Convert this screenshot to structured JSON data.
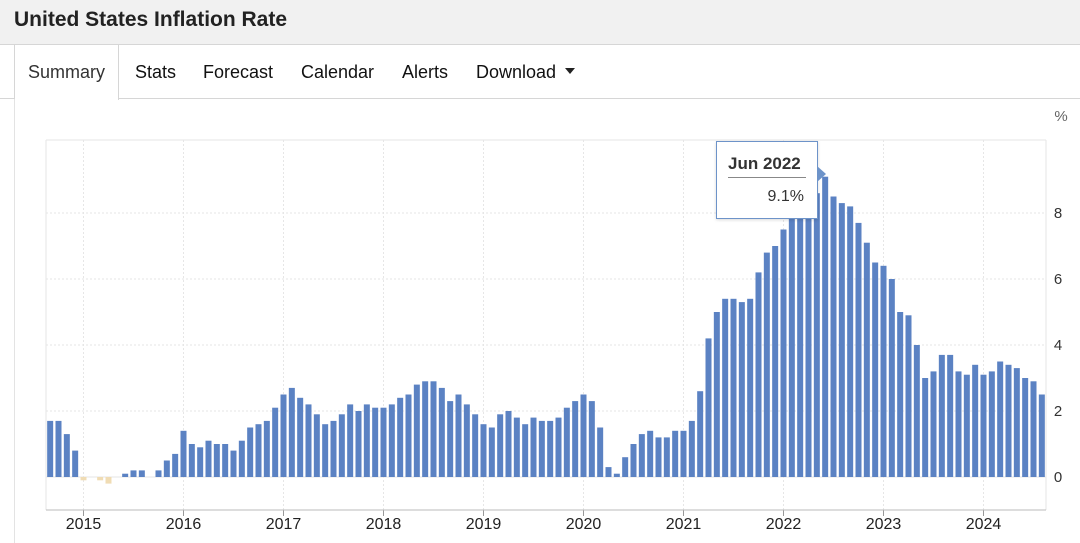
{
  "page": {
    "title": "United States Inflation Rate"
  },
  "tabs": [
    {
      "label": "Summary",
      "active": true
    },
    {
      "label": "Stats",
      "active": false
    },
    {
      "label": "Forecast",
      "active": false
    },
    {
      "label": "Calendar",
      "active": false
    },
    {
      "label": "Alerts",
      "active": false
    },
    {
      "label": "Download",
      "active": false,
      "has_dropdown": true
    }
  ],
  "tooltip": {
    "date": "Jun 2022",
    "value": "9.1%"
  },
  "colors": {
    "positive_bar": "#5b82c3",
    "negative_bar": "#f0dcb4",
    "grid": "#e6e6e6",
    "tooltip_border": "#6d93c9"
  },
  "chart_data": {
    "type": "bar",
    "unit": "%",
    "ylim": [
      -1,
      10
    ],
    "yticks": [
      0,
      2,
      4,
      6,
      8
    ],
    "x_tick_labels": [
      "2015",
      "2016",
      "2017",
      "2018",
      "2019",
      "2020",
      "2021",
      "2022",
      "2023",
      "2024"
    ],
    "grid": true,
    "x_start": "2014-09",
    "x_end": "2024-08",
    "categories": [
      "Sep 2014",
      "Oct 2014",
      "Nov 2014",
      "Dec 2014",
      "Jan 2015",
      "Feb 2015",
      "Mar 2015",
      "Apr 2015",
      "May 2015",
      "Jun 2015",
      "Jul 2015",
      "Aug 2015",
      "Sep 2015",
      "Oct 2015",
      "Nov 2015",
      "Dec 2015",
      "Jan 2016",
      "Feb 2016",
      "Mar 2016",
      "Apr 2016",
      "May 2016",
      "Jun 2016",
      "Jul 2016",
      "Aug 2016",
      "Sep 2016",
      "Oct 2016",
      "Nov 2016",
      "Dec 2016",
      "Jan 2017",
      "Feb 2017",
      "Mar 2017",
      "Apr 2017",
      "May 2017",
      "Jun 2017",
      "Jul 2017",
      "Aug 2017",
      "Sep 2017",
      "Oct 2017",
      "Nov 2017",
      "Dec 2017",
      "Jan 2018",
      "Feb 2018",
      "Mar 2018",
      "Apr 2018",
      "May 2018",
      "Jun 2018",
      "Jul 2018",
      "Aug 2018",
      "Sep 2018",
      "Oct 2018",
      "Nov 2018",
      "Dec 2018",
      "Jan 2019",
      "Feb 2019",
      "Mar 2019",
      "Apr 2019",
      "May 2019",
      "Jun 2019",
      "Jul 2019",
      "Aug 2019",
      "Sep 2019",
      "Oct 2019",
      "Nov 2019",
      "Dec 2019",
      "Jan 2020",
      "Feb 2020",
      "Mar 2020",
      "Apr 2020",
      "May 2020",
      "Jun 2020",
      "Jul 2020",
      "Aug 2020",
      "Sep 2020",
      "Oct 2020",
      "Nov 2020",
      "Dec 2020",
      "Jan 2021",
      "Feb 2021",
      "Mar 2021",
      "Apr 2021",
      "May 2021",
      "Jun 2021",
      "Jul 2021",
      "Aug 2021",
      "Sep 2021",
      "Oct 2021",
      "Nov 2021",
      "Dec 2021",
      "Jan 2022",
      "Feb 2022",
      "Mar 2022",
      "Apr 2022",
      "May 2022",
      "Jun 2022",
      "Jul 2022",
      "Aug 2022",
      "Sep 2022",
      "Oct 2022",
      "Nov 2022",
      "Dec 2022",
      "Jan 2023",
      "Feb 2023",
      "Mar 2023",
      "Apr 2023",
      "May 2023",
      "Jun 2023",
      "Jul 2023",
      "Aug 2023",
      "Sep 2023",
      "Oct 2023",
      "Nov 2023",
      "Dec 2023",
      "Jan 2024",
      "Feb 2024",
      "Mar 2024",
      "Apr 2024",
      "May 2024",
      "Jun 2024",
      "Jul 2024",
      "Aug 2024"
    ],
    "values": [
      1.7,
      1.7,
      1.3,
      0.8,
      -0.1,
      0.0,
      -0.1,
      -0.2,
      0.0,
      0.1,
      0.2,
      0.2,
      0.0,
      0.2,
      0.5,
      0.7,
      1.4,
      1.0,
      0.9,
      1.1,
      1.0,
      1.0,
      0.8,
      1.1,
      1.5,
      1.6,
      1.7,
      2.1,
      2.5,
      2.7,
      2.4,
      2.2,
      1.9,
      1.6,
      1.7,
      1.9,
      2.2,
      2.0,
      2.2,
      2.1,
      2.1,
      2.2,
      2.4,
      2.5,
      2.8,
      2.9,
      2.9,
      2.7,
      2.3,
      2.5,
      2.2,
      1.9,
      1.6,
      1.5,
      1.9,
      2.0,
      1.8,
      1.6,
      1.8,
      1.7,
      1.7,
      1.8,
      2.1,
      2.3,
      2.5,
      2.3,
      1.5,
      0.3,
      0.1,
      0.6,
      1.0,
      1.3,
      1.4,
      1.2,
      1.2,
      1.4,
      1.4,
      1.7,
      2.6,
      4.2,
      5.0,
      5.4,
      5.4,
      5.3,
      5.4,
      6.2,
      6.8,
      7.0,
      7.5,
      7.9,
      8.5,
      8.3,
      8.6,
      9.1,
      8.5,
      8.3,
      8.2,
      7.7,
      7.1,
      6.5,
      6.4,
      6.0,
      5.0,
      4.9,
      4.0,
      3.0,
      3.2,
      3.7,
      3.7,
      3.2,
      3.1,
      3.4,
      3.1,
      3.2,
      3.5,
      3.4,
      3.3,
      3.0,
      2.9,
      2.5
    ]
  }
}
